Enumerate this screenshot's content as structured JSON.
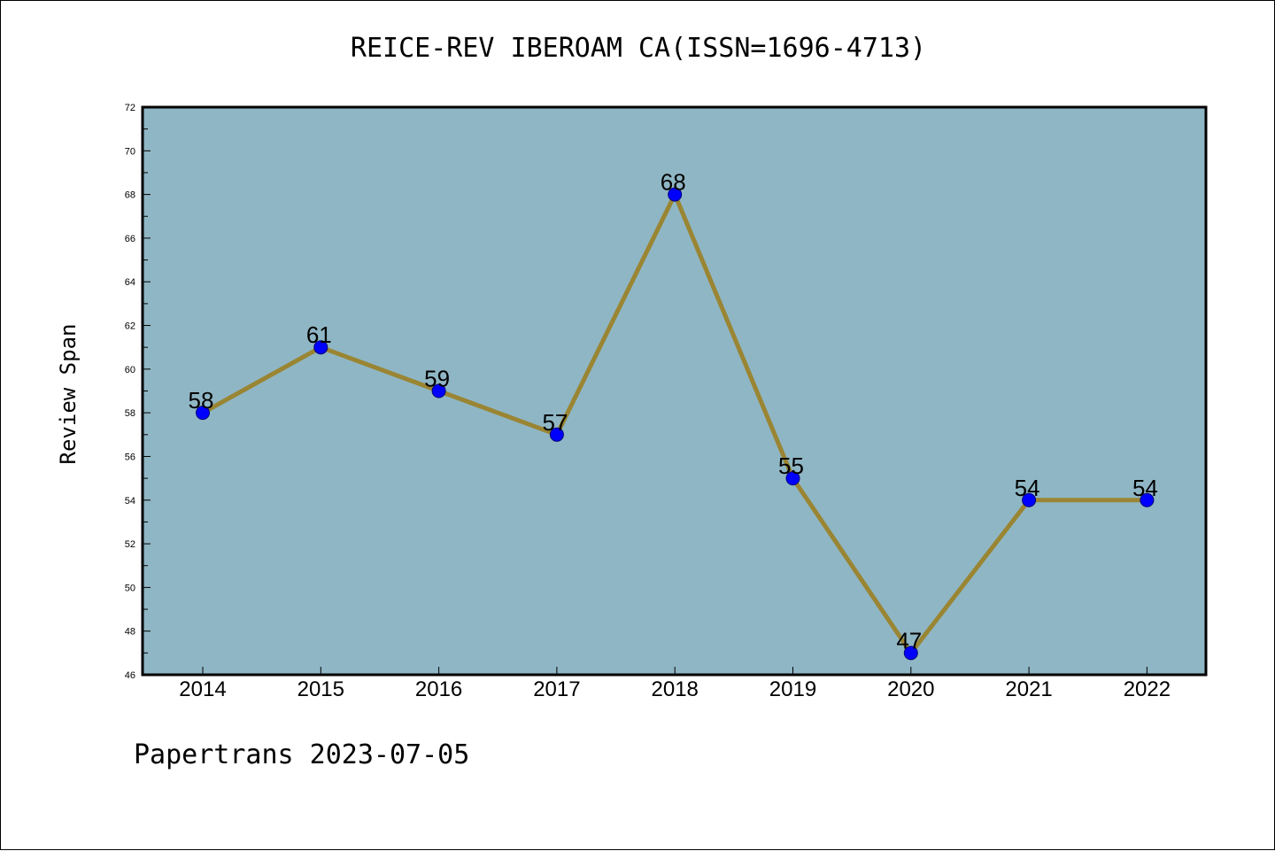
{
  "chart_data": {
    "type": "line",
    "title": "REICE-REV IBEROAM CA(ISSN=1696-4713)",
    "xlabel": "",
    "ylabel": "Review Span",
    "categories": [
      "2014",
      "2015",
      "2016",
      "2017",
      "2018",
      "2019",
      "2020",
      "2021",
      "2022"
    ],
    "series": [
      {
        "values": [
          58,
          61,
          59,
          57,
          68,
          55,
          47,
          54,
          54
        ]
      }
    ],
    "ylim": [
      46,
      72
    ],
    "yticks": [
      46,
      48,
      50,
      52,
      54,
      56,
      58,
      60,
      62,
      64,
      66,
      68,
      70,
      72
    ],
    "grid": false,
    "colors": {
      "plot_background": "#8fb6c4",
      "line": "#9a8533",
      "marker": "#0000ff"
    }
  },
  "footer": {
    "note": "Papertrans 2023-07-05"
  }
}
